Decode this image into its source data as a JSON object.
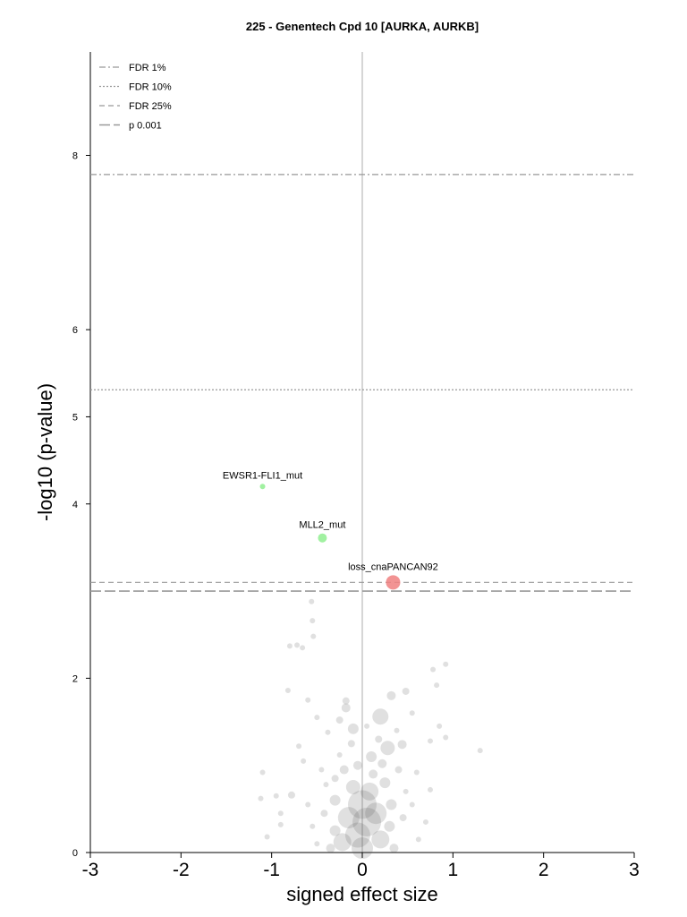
{
  "chart_data": {
    "type": "scatter",
    "title": "225 - Genentech Cpd 10 [AURKA, AURKB]",
    "xlabel": "signed effect size",
    "ylabel": "-log10 (p-value)",
    "xlim": [
      -3,
      3
    ],
    "ylim": [
      0,
      9.2
    ],
    "xticks": [
      "-3",
      "-2",
      "-1",
      "0",
      "1",
      "2",
      "3"
    ],
    "yticks": [
      "0",
      "2",
      "4",
      "5",
      "6",
      "8"
    ],
    "legend_position": "top-left",
    "thresholds": [
      {
        "name": "FDR 1%",
        "y": 7.78,
        "style": "dashdot"
      },
      {
        "name": "FDR 10%",
        "y": 5.31,
        "style": "dotted"
      },
      {
        "name": "FDR 25%",
        "y": 3.1,
        "style": "dashed"
      },
      {
        "name": "p 0.001",
        "y": 3.0,
        "style": "longdash"
      }
    ],
    "highlighted": [
      {
        "label": "EWSR1-FLI1_mut",
        "x": -1.1,
        "y": 4.2,
        "color": "#90ee90",
        "size": 3
      },
      {
        "label": "MLL2_mut",
        "x": -0.44,
        "y": 3.61,
        "color": "#90ee90",
        "size": 5
      },
      {
        "label": "loss_cnaPANCAN92",
        "x": 0.34,
        "y": 3.1,
        "color": "#f08080",
        "size": 8
      }
    ],
    "background_points": [
      {
        "x": -0.56,
        "y": 2.88,
        "s": 3
      },
      {
        "x": -0.55,
        "y": 2.66,
        "s": 3
      },
      {
        "x": -0.54,
        "y": 2.48,
        "s": 3
      },
      {
        "x": -0.8,
        "y": 2.37,
        "s": 3
      },
      {
        "x": -0.72,
        "y": 2.38,
        "s": 3
      },
      {
        "x": -0.66,
        "y": 2.35,
        "s": 3
      },
      {
        "x": 0.78,
        "y": 2.1,
        "s": 3
      },
      {
        "x": 0.92,
        "y": 2.16,
        "s": 3
      },
      {
        "x": -0.82,
        "y": 1.86,
        "s": 3
      },
      {
        "x": -0.6,
        "y": 1.75,
        "s": 3
      },
      {
        "x": -0.18,
        "y": 1.66,
        "s": 5
      },
      {
        "x": -0.18,
        "y": 1.74,
        "s": 4
      },
      {
        "x": 0.2,
        "y": 1.56,
        "s": 9
      },
      {
        "x": 0.32,
        "y": 1.8,
        "s": 5
      },
      {
        "x": 0.48,
        "y": 1.85,
        "s": 4
      },
      {
        "x": 0.82,
        "y": 1.92,
        "s": 3
      },
      {
        "x": 0.55,
        "y": 1.6,
        "s": 3
      },
      {
        "x": 0.85,
        "y": 1.45,
        "s": 3
      },
      {
        "x": 0.92,
        "y": 1.32,
        "s": 3
      },
      {
        "x": 1.3,
        "y": 1.17,
        "s": 3
      },
      {
        "x": 0.75,
        "y": 1.28,
        "s": 3
      },
      {
        "x": -0.1,
        "y": 1.42,
        "s": 6
      },
      {
        "x": -0.25,
        "y": 1.52,
        "s": 4
      },
      {
        "x": -0.38,
        "y": 1.38,
        "s": 3
      },
      {
        "x": -0.5,
        "y": 1.55,
        "s": 3
      },
      {
        "x": 0.28,
        "y": 1.2,
        "s": 8
      },
      {
        "x": 0.44,
        "y": 1.24,
        "s": 5
      },
      {
        "x": 0.1,
        "y": 1.1,
        "s": 6
      },
      {
        "x": -0.7,
        "y": 1.22,
        "s": 3
      },
      {
        "x": -1.1,
        "y": 0.92,
        "s": 3
      },
      {
        "x": -1.12,
        "y": 0.62,
        "s": 3
      },
      {
        "x": -0.95,
        "y": 0.65,
        "s": 3
      },
      {
        "x": -0.78,
        "y": 0.66,
        "s": 4
      },
      {
        "x": -0.9,
        "y": 0.45,
        "s": 3
      },
      {
        "x": -0.9,
        "y": 0.32,
        "s": 3
      },
      {
        "x": -1.05,
        "y": 0.18,
        "s": 3
      },
      {
        "x": -0.65,
        "y": 1.05,
        "s": 3
      },
      {
        "x": -0.45,
        "y": 0.95,
        "s": 3
      },
      {
        "x": -0.3,
        "y": 0.85,
        "s": 4
      },
      {
        "x": -0.25,
        "y": 1.12,
        "s": 3
      },
      {
        "x": 0.6,
        "y": 0.92,
        "s": 3
      },
      {
        "x": 0.75,
        "y": 0.72,
        "s": 3
      },
      {
        "x": 0.55,
        "y": 0.55,
        "s": 3
      },
      {
        "x": 0.7,
        "y": 0.35,
        "s": 3
      },
      {
        "x": 0.62,
        "y": 0.15,
        "s": 3
      },
      {
        "x": -0.6,
        "y": 0.55,
        "s": 3
      },
      {
        "x": -0.55,
        "y": 0.3,
        "s": 3
      },
      {
        "x": -0.5,
        "y": 0.1,
        "s": 3
      },
      {
        "x": 0.0,
        "y": 0.55,
        "s": 16
      },
      {
        "x": 0.05,
        "y": 0.35,
        "s": 16
      },
      {
        "x": -0.05,
        "y": 0.2,
        "s": 14
      },
      {
        "x": 0.15,
        "y": 0.45,
        "s": 12
      },
      {
        "x": -0.15,
        "y": 0.4,
        "s": 12
      },
      {
        "x": 0.2,
        "y": 0.15,
        "s": 10
      },
      {
        "x": -0.22,
        "y": 0.12,
        "s": 10
      },
      {
        "x": 0.08,
        "y": 0.7,
        "s": 10
      },
      {
        "x": -0.1,
        "y": 0.75,
        "s": 8
      },
      {
        "x": 0.25,
        "y": 0.8,
        "s": 6
      },
      {
        "x": -0.3,
        "y": 0.6,
        "s": 6
      },
      {
        "x": 0.32,
        "y": 0.55,
        "s": 6
      },
      {
        "x": 0.3,
        "y": 0.3,
        "s": 6
      },
      {
        "x": -0.3,
        "y": 0.25,
        "s": 6
      },
      {
        "x": 0.12,
        "y": 0.9,
        "s": 5
      },
      {
        "x": -0.05,
        "y": 1.0,
        "s": 5
      },
      {
        "x": 0.4,
        "y": 0.95,
        "s": 4
      },
      {
        "x": 0.35,
        "y": 0.05,
        "s": 5
      },
      {
        "x": -0.35,
        "y": 0.05,
        "s": 5
      },
      {
        "x": 0.0,
        "y": 0.05,
        "s": 12
      },
      {
        "x": 0.45,
        "y": 0.4,
        "s": 4
      },
      {
        "x": -0.42,
        "y": 0.45,
        "s": 4
      },
      {
        "x": 0.48,
        "y": 0.7,
        "s": 3
      },
      {
        "x": -0.4,
        "y": 0.78,
        "s": 3
      },
      {
        "x": 0.18,
        "y": 1.3,
        "s": 4
      },
      {
        "x": -0.12,
        "y": 1.25,
        "s": 4
      },
      {
        "x": 0.05,
        "y": 1.45,
        "s": 3
      },
      {
        "x": 0.38,
        "y": 1.4,
        "s": 3
      },
      {
        "x": -0.2,
        "y": 0.95,
        "s": 5
      },
      {
        "x": 0.22,
        "y": 1.02,
        "s": 5
      }
    ]
  }
}
